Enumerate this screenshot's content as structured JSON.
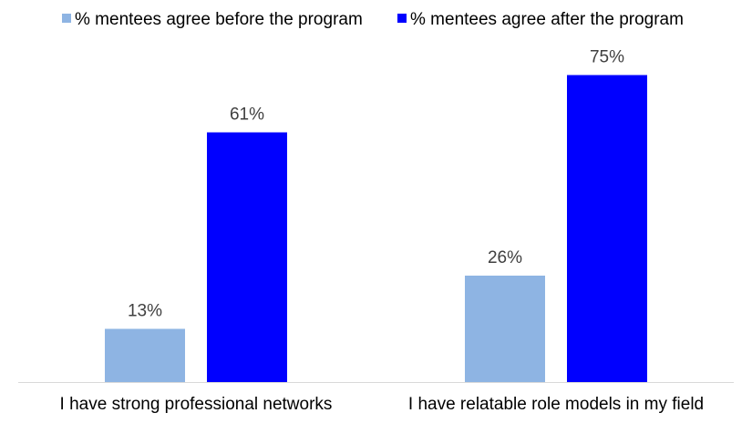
{
  "chart_data": {
    "type": "bar",
    "title": "",
    "xlabel": "",
    "ylabel": "",
    "ylim": [
      0,
      80
    ],
    "grid": false,
    "legend_position": "top",
    "categories": [
      "I have strong professional networks",
      "I have relatable role models in my field"
    ],
    "series": [
      {
        "name": "% mentees agree before the program",
        "values": [
          13,
          26
        ],
        "labels": [
          "13%",
          "26%"
        ],
        "color": "#8EB4E3"
      },
      {
        "name": "% mentees agree after the program",
        "values": [
          61,
          75
        ],
        "labels": [
          "61%",
          "75%"
        ],
        "color": "#0000FF"
      }
    ],
    "axis_color": "#D9D9D9"
  }
}
